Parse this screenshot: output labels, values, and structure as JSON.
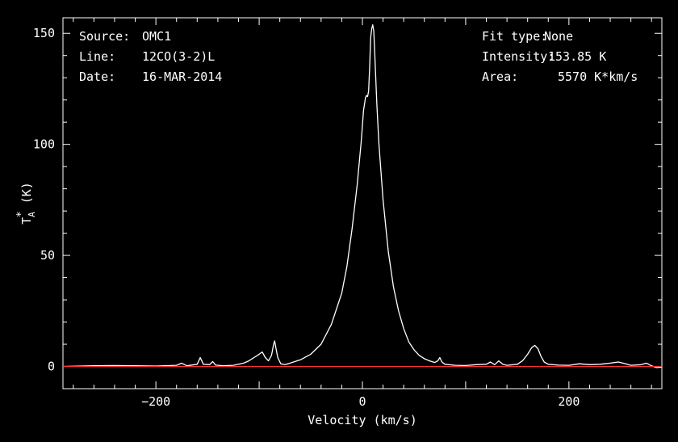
{
  "header": {
    "left": [
      {
        "label": "Source:",
        "value": "OMC1"
      },
      {
        "label": "Line:",
        "value": "12CO(3-2)L"
      },
      {
        "label": "Date:",
        "value": "16-MAR-2014"
      }
    ],
    "right": [
      {
        "label": "Fit type:",
        "value": "None"
      },
      {
        "label": "Intensity:",
        "value": "153.85 K"
      },
      {
        "label": "Area:",
        "value": "5570 K*km/s"
      }
    ]
  },
  "chart_data": {
    "type": "line",
    "xlabel": "Velocity (km/s)",
    "ylabel": "T_A^* (K)",
    "xlim": [
      -290,
      290
    ],
    "ylim": [
      -10,
      157
    ],
    "xticks": [
      -200,
      0,
      200
    ],
    "yticks": [
      0,
      50,
      100,
      150
    ],
    "grid": false,
    "background": "#000000",
    "axis_color": "#ffffff",
    "baseline": {
      "value": 0,
      "color": "#ff3030"
    },
    "series": [
      {
        "color": "#ffffff",
        "points": [
          [
            -290,
            0.0
          ],
          [
            -260,
            0.3
          ],
          [
            -240,
            0.4
          ],
          [
            -220,
            0.3
          ],
          [
            -200,
            0.2
          ],
          [
            -180,
            0.5
          ],
          [
            -175,
            1.5
          ],
          [
            -170,
            0.3
          ],
          [
            -160,
            1.0
          ],
          [
            -157,
            4.0
          ],
          [
            -154,
            1.0
          ],
          [
            -148,
            0.8
          ],
          [
            -145,
            2.2
          ],
          [
            -142,
            0.6
          ],
          [
            -135,
            0.3
          ],
          [
            -125,
            0.5
          ],
          [
            -115,
            1.5
          ],
          [
            -110,
            2.5
          ],
          [
            -105,
            4.0
          ],
          [
            -100,
            5.5
          ],
          [
            -97,
            6.5
          ],
          [
            -94,
            4.0
          ],
          [
            -91,
            2.5
          ],
          [
            -88,
            5.0
          ],
          [
            -86,
            10.0
          ],
          [
            -85,
            11.5
          ],
          [
            -84,
            9.0
          ],
          [
            -82,
            4.0
          ],
          [
            -79,
            1.2
          ],
          [
            -75,
            0.8
          ],
          [
            -70,
            1.5
          ],
          [
            -60,
            3.0
          ],
          [
            -50,
            5.5
          ],
          [
            -40,
            10.0
          ],
          [
            -30,
            19.0
          ],
          [
            -20,
            33.0
          ],
          [
            -15,
            45.0
          ],
          [
            -10,
            62.0
          ],
          [
            -5,
            82.0
          ],
          [
            -1,
            102.0
          ],
          [
            1,
            115.0
          ],
          [
            3,
            121.0
          ],
          [
            4,
            122.0
          ],
          [
            5,
            121.5
          ],
          [
            6,
            124.0
          ],
          [
            7,
            135.0
          ],
          [
            8,
            148.0
          ],
          [
            9,
            152.0
          ],
          [
            10,
            153.85
          ],
          [
            11,
            151.0
          ],
          [
            12,
            140.0
          ],
          [
            14,
            118.0
          ],
          [
            16,
            100.0
          ],
          [
            20,
            75.0
          ],
          [
            25,
            52.0
          ],
          [
            30,
            36.0
          ],
          [
            35,
            25.0
          ],
          [
            40,
            17.0
          ],
          [
            45,
            11.0
          ],
          [
            50,
            7.5
          ],
          [
            55,
            5.0
          ],
          [
            60,
            3.5
          ],
          [
            65,
            2.5
          ],
          [
            70,
            1.8
          ],
          [
            73,
            2.5
          ],
          [
            75,
            4.0
          ],
          [
            77,
            2.0
          ],
          [
            80,
            1.0
          ],
          [
            90,
            0.5
          ],
          [
            100,
            0.4
          ],
          [
            110,
            0.8
          ],
          [
            120,
            1.0
          ],
          [
            124,
            2.0
          ],
          [
            128,
            0.8
          ],
          [
            132,
            2.5
          ],
          [
            136,
            1.0
          ],
          [
            140,
            0.5
          ],
          [
            150,
            1.0
          ],
          [
            155,
            2.5
          ],
          [
            160,
            5.5
          ],
          [
            164,
            8.5
          ],
          [
            167,
            9.5
          ],
          [
            170,
            8.0
          ],
          [
            173,
            4.5
          ],
          [
            176,
            2.0
          ],
          [
            180,
            1.0
          ],
          [
            190,
            0.6
          ],
          [
            200,
            0.5
          ],
          [
            210,
            1.2
          ],
          [
            220,
            0.8
          ],
          [
            230,
            1.0
          ],
          [
            240,
            1.5
          ],
          [
            248,
            2.0
          ],
          [
            255,
            1.2
          ],
          [
            260,
            0.5
          ],
          [
            270,
            0.8
          ],
          [
            275,
            1.5
          ],
          [
            280,
            0.3
          ],
          [
            285,
            -0.5
          ],
          [
            290,
            -0.3
          ]
        ]
      }
    ]
  }
}
